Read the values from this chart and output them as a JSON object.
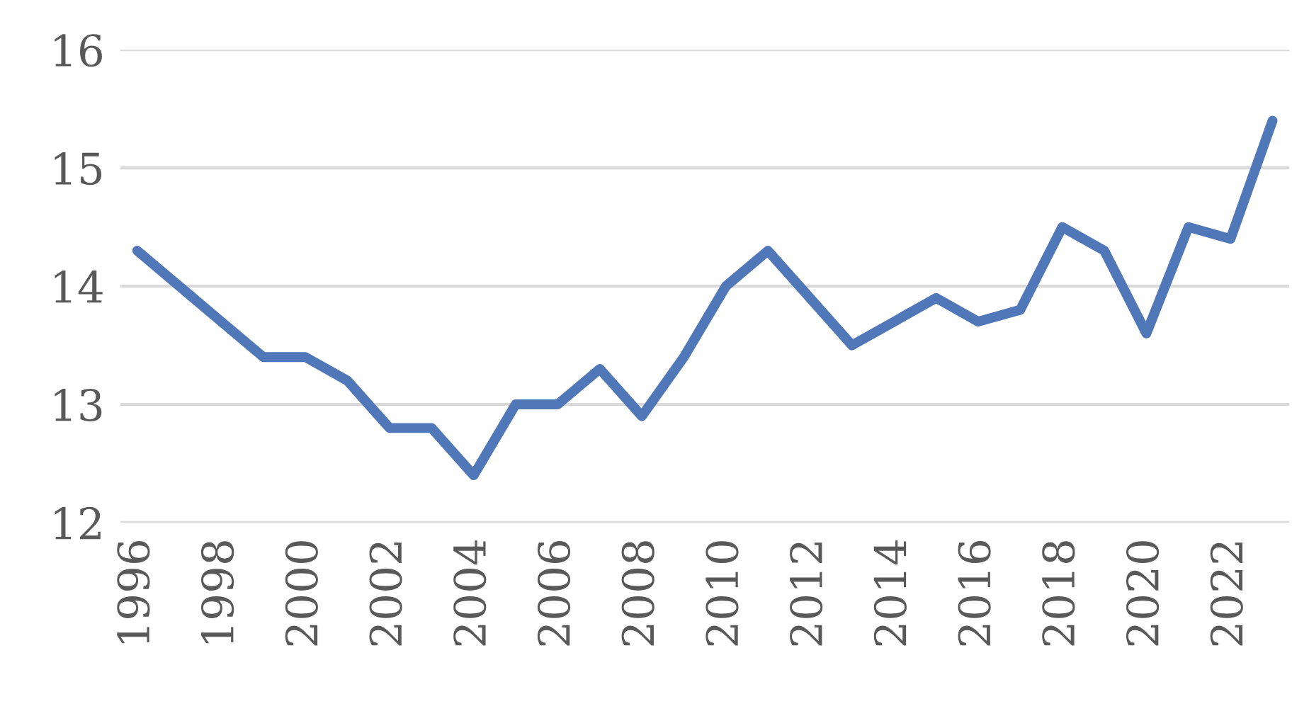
{
  "chart_data": {
    "type": "line",
    "x": [
      1996,
      1997,
      1998,
      1999,
      2000,
      2001,
      2002,
      2003,
      2004,
      2005,
      2006,
      2007,
      2008,
      2009,
      2010,
      2011,
      2012,
      2013,
      2014,
      2015,
      2016,
      2017,
      2018,
      2019,
      2020,
      2021,
      2022,
      2023
    ],
    "series": [
      {
        "color": "#5078b9",
        "values": [
          14.3,
          14.0,
          13.7,
          13.4,
          13.4,
          13.2,
          12.8,
          12.8,
          12.4,
          13.0,
          13.0,
          13.3,
          12.9,
          13.4,
          14.0,
          14.3,
          13.9,
          13.5,
          13.7,
          13.9,
          13.7,
          13.8,
          14.5,
          14.3,
          13.6,
          14.5,
          14.4,
          15.4
        ]
      }
    ],
    "xlim": [
      1995.6,
      2023.4
    ],
    "xticks": [
      1996,
      1998,
      2000,
      2002,
      2004,
      2006,
      2008,
      2010,
      2012,
      2014,
      2016,
      2018,
      2020,
      2022
    ],
    "ylim": [
      12,
      16
    ],
    "yticks": [
      12,
      13,
      14,
      15,
      16
    ],
    "grid": "y",
    "marker": "none",
    "line_style": "solid"
  }
}
